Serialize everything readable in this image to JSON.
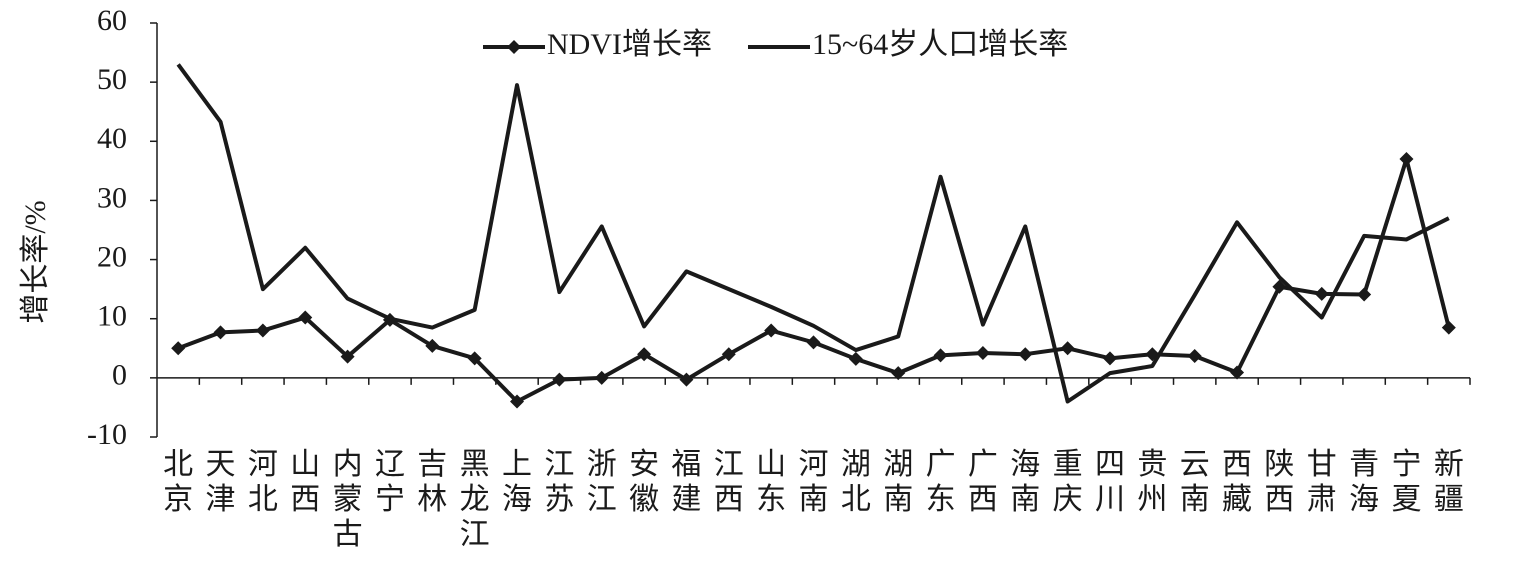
{
  "chart_data": {
    "type": "line",
    "y_label": "增长率/%",
    "categories": [
      "北京",
      "天津",
      "河北",
      "山西",
      "内蒙古",
      "辽宁",
      "吉林",
      "黑龙江",
      "上海",
      "江苏",
      "浙江",
      "安徽",
      "福建",
      "江西",
      "山东",
      "河南",
      "湖北",
      "湖南",
      "广东",
      "广西",
      "海南",
      "重庆",
      "四川",
      "贵州",
      "云南",
      "西藏",
      "陕西",
      "甘肃",
      "青海",
      "宁夏",
      "新疆"
    ],
    "series": [
      {
        "name": "NDVI增长率",
        "color": "#1a1a1a",
        "marker": "diamond",
        "values": [
          5,
          7.7,
          8,
          10.2,
          3.6,
          9.8,
          5.4,
          3.3,
          -4,
          -0.3,
          0,
          4,
          -0.3,
          4,
          8,
          6,
          3.2,
          0.8,
          3.8,
          4.2,
          4,
          5,
          3.3,
          4,
          3.7,
          0.9,
          15.4,
          14.2,
          14.1,
          37,
          8.5
        ]
      },
      {
        "name": "15~64岁人口增长率",
        "color": "#1a1a1a",
        "values": [
          53,
          43.3,
          15,
          22,
          13.4,
          10,
          8.5,
          11.5,
          49.5,
          14.5,
          25.6,
          8.7,
          18,
          15,
          12,
          8.8,
          4.7,
          7,
          34,
          9,
          25.6,
          -4,
          0.8,
          2,
          14,
          26.3,
          17,
          10.2,
          24,
          23.4,
          27
        ]
      }
    ],
    "ylim": [
      -10,
      60
    ],
    "yticks": [
      -10,
      0,
      10,
      20,
      30,
      40,
      50,
      60
    ],
    "grid": false,
    "legend": "top"
  }
}
